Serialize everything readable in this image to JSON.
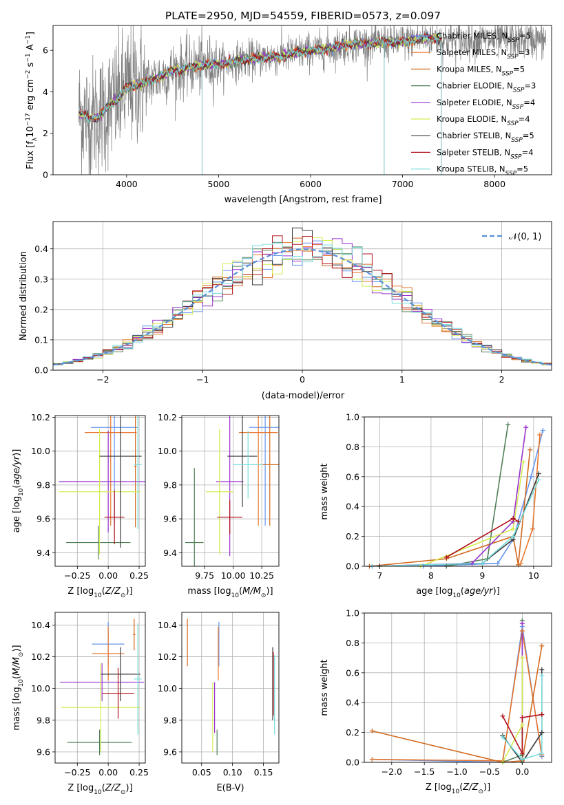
{
  "title": "PLATE=2950, MJD=54559, FIBERID=0573, z=0.097",
  "colors": {
    "Chabrier MILES": "#6495ed",
    "Salpeter MILES": "#e8762d",
    "Kroupa MILES": "#d2691e",
    "Chabrier ELODIE": "#4f7f56",
    "Salpeter ELODIE": "#9932cc",
    "Kroupa ELODIE": "#d4ed50",
    "Chabrier STELIB": "#3a3a3a",
    "Salpeter STELIB": "#b0101a",
    "Kroupa STELIB": "#77dddd"
  },
  "chart_data": [
    {
      "id": "spectrum",
      "type": "line",
      "title": "PLATE=2950, MJD=54559, FIBERID=0573, z=0.097",
      "xlabel": "wavelength [Angstrom, rest frame]",
      "ylabel": "Flux [f_λ10^-17 erg cm^-2 s^-1 A^-1]",
      "xlim": [
        3200,
        8620
      ],
      "ylim": [
        0,
        7.2
      ],
      "xticks": [
        4000,
        5000,
        6000,
        7000,
        8000
      ],
      "yticks": [
        0,
        2,
        4,
        6
      ],
      "grid": false,
      "legend_position": "top-right",
      "continuum": {
        "x": [
          3480,
          3600,
          3700,
          3800,
          3900,
          4000,
          4100,
          4200,
          4300,
          4400,
          4500,
          4600,
          4700,
          4800,
          4900,
          5000,
          5100,
          5200,
          5300,
          5400,
          5500,
          5600,
          5700,
          5800,
          5900,
          6000,
          6100,
          6200,
          6300,
          6400,
          6500,
          6600,
          6700,
          6800,
          6900,
          7000,
          7100,
          7200,
          7300,
          7400,
          7430
        ],
        "y": [
          3.0,
          2.7,
          2.8,
          3.3,
          3.6,
          4.2,
          4.35,
          4.4,
          4.6,
          4.8,
          5.0,
          5.1,
          5.2,
          5.25,
          5.3,
          5.35,
          5.35,
          5.5,
          5.55,
          5.6,
          5.65,
          5.7,
          5.75,
          5.85,
          5.9,
          6.0,
          6.0,
          6.1,
          6.2,
          6.3,
          6.35,
          6.3,
          6.35,
          6.4,
          6.4,
          6.4,
          6.5,
          6.55,
          6.6,
          6.6,
          6.5
        ]
      },
      "legend": [
        "Chabrier MILES, N_SSP=5",
        "Salpeter MILES, N_SSP=3",
        "Kroupa MILES, N_SSP=5",
        "Chabrier ELODIE, N_SSP=3",
        "Salpeter ELODIE, N_SSP=4",
        "Kroupa ELODIE, N_SSP=4",
        "Chabrier STELIB, N_SSP=5",
        "Salpeter STELIB, N_SSP=4",
        "Kroupa STELIB, N_SSP=5"
      ]
    },
    {
      "id": "residuals",
      "type": "line",
      "xlabel": "(data-model)/error",
      "ylabel": "Normed distribution",
      "xlim": [
        -2.5,
        2.5
      ],
      "ylim": [
        0,
        0.49
      ],
      "xticks": [
        -2,
        -1,
        0,
        1,
        2
      ],
      "yticks": [
        0.0,
        0.1,
        0.2,
        0.3,
        0.4
      ],
      "grid": true,
      "legend_position": "top-right",
      "legend": [
        "𝒩(0, 1)"
      ],
      "bin_width": 0.1
    },
    {
      "id": "age_vs_Z",
      "type": "scatter",
      "xlabel": "Z [log10(Z/Z⊙)]",
      "ylabel": "age  [log10(age/yr)]",
      "xlim": [
        -0.43,
        0.3
      ],
      "ylim": [
        9.32,
        10.21
      ],
      "xticks": [
        -0.25,
        0.0,
        0.25
      ],
      "yticks": [
        9.4,
        9.6,
        9.8,
        10.0,
        10.2
      ],
      "grid": true,
      "points": [
        {
          "model": "Chabrier MILES",
          "x": 0.05,
          "xerr": 0.19,
          "y": 10.14,
          "yerr": 0.58
        },
        {
          "model": "Salpeter MILES",
          "x": 0.02,
          "xerr": 0.21,
          "y": 10.11,
          "yerr": 0.55
        },
        {
          "model": "Kroupa MILES",
          "x": 0.22,
          "xerr": 0.01,
          "y": 9.91,
          "yerr": 0.36
        },
        {
          "model": "Chabrier ELODIE",
          "x": -0.08,
          "xerr": 0.26,
          "y": 9.46,
          "yerr": 0.1
        },
        {
          "model": "Salpeter ELODIE",
          "x": 0.0,
          "xerr": 0.4,
          "y": 9.82,
          "yerr": 0.3
        },
        {
          "model": "Kroupa ELODIE",
          "x": -0.07,
          "xerr": 0.33,
          "y": 9.76,
          "yerr": 0.37
        },
        {
          "model": "Chabrier STELIB",
          "x": 0.1,
          "xerr": 0.17,
          "y": 9.97,
          "yerr": 0.54
        },
        {
          "model": "Salpeter STELIB",
          "x": 0.05,
          "xerr": 0.08,
          "y": 9.61,
          "yerr": 0.16
        },
        {
          "model": "Kroupa STELIB",
          "x": 0.24,
          "xerr": 0.03,
          "y": 9.92,
          "yerr": 0.38
        }
      ]
    },
    {
      "id": "age_vs_mass",
      "type": "scatter",
      "xlabel": "mass [log10(M/M⊙)]",
      "ylabel": "",
      "xlim": [
        9.55,
        10.4
      ],
      "ylim": [
        9.32,
        10.21
      ],
      "xticks": [
        9.75,
        10.0,
        10.25
      ],
      "yticks": [
        9.4,
        9.6,
        9.8,
        10.0,
        10.2
      ],
      "grid": true,
      "points": [
        {
          "model": "Chabrier MILES",
          "x": 10.28,
          "xerr": 0.14,
          "y": 10.14,
          "yerr": 0.58
        },
        {
          "model": "Salpeter MILES",
          "x": 10.22,
          "xerr": 0.17,
          "y": 10.11,
          "yerr": 0.55
        },
        {
          "model": "Kroupa MILES",
          "x": 10.32,
          "xerr": 0.12,
          "y": 9.92,
          "yerr": 0.36
        },
        {
          "model": "Chabrier ELODIE",
          "x": 9.66,
          "xerr": 0.08,
          "y": 9.46,
          "yerr": 0.44
        },
        {
          "model": "Salpeter ELODIE",
          "x": 9.97,
          "xerr": 0.12,
          "y": 9.82,
          "yerr": 0.44
        },
        {
          "model": "Kroupa ELODIE",
          "x": 9.88,
          "xerr": 0.12,
          "y": 9.76,
          "yerr": 0.37
        },
        {
          "model": "Chabrier STELIB",
          "x": 10.08,
          "xerr": 0.13,
          "y": 9.97,
          "yerr": 0.3
        },
        {
          "model": "Salpeter STELIB",
          "x": 9.97,
          "xerr": 0.11,
          "y": 9.61,
          "yerr": 0.1
        },
        {
          "model": "Kroupa STELIB",
          "x": 10.13,
          "xerr": 0.13,
          "y": 9.92,
          "yerr": 0.2
        }
      ]
    },
    {
      "id": "weights_vs_age",
      "type": "line",
      "xlabel": "age  [log10(age/yr)]",
      "ylabel": "mass weight",
      "xlim": [
        6.7,
        10.35
      ],
      "ylim": [
        0,
        1.0
      ],
      "xticks": [
        7,
        8,
        9,
        10
      ],
      "yticks": [
        0.0,
        0.2,
        0.4,
        0.6,
        0.8,
        1.0
      ],
      "grid": true,
      "series": [
        {
          "model": "Chabrier MILES",
          "x": [
            6.85,
            7.85,
            9.3,
            9.6,
            9.95,
            10.18
          ],
          "y": [
            0.0,
            0.0,
            0.02,
            0.18,
            0.6,
            0.91
          ]
        },
        {
          "model": "Salpeter MILES",
          "x": [
            9.75,
            9.98,
            10.12
          ],
          "y": [
            0.02,
            0.25,
            0.88
          ]
        },
        {
          "model": "Kroupa MILES",
          "x": [
            6.8,
            8.3,
            9.6,
            9.7,
            9.93
          ],
          "y": [
            0.0,
            0.05,
            0.2,
            0.01,
            0.78
          ]
        },
        {
          "model": "Chabrier ELODIE",
          "x": [
            8.3,
            9.1,
            9.5
          ],
          "y": [
            0.0,
            0.05,
            0.95
          ]
        },
        {
          "model": "Salpeter ELODIE",
          "x": [
            6.85,
            8.8,
            9.6,
            9.85
          ],
          "y": [
            0.0,
            0.02,
            0.3,
            0.93
          ]
        },
        {
          "model": "Kroupa ELODIE",
          "x": [
            7.8,
            9.6,
            9.8
          ],
          "y": [
            0.0,
            0.25,
            0.7
          ]
        },
        {
          "model": "Chabrier STELIB",
          "x": [
            7.0,
            9.0,
            9.6,
            10.1
          ],
          "y": [
            0.0,
            0.02,
            0.18,
            0.62
          ]
        },
        {
          "model": "Salpeter STELIB",
          "x": [
            8.3,
            9.6,
            9.7
          ],
          "y": [
            0.06,
            0.32,
            0.3
          ]
        },
        {
          "model": "Kroupa STELIB",
          "x": [
            6.85,
            9.0,
            9.6,
            10.1
          ],
          "y": [
            0.0,
            0.02,
            0.2,
            0.58
          ]
        }
      ]
    },
    {
      "id": "mass_vs_Z",
      "type": "scatter",
      "xlabel": "Z [log10(Z/Z⊙)]",
      "ylabel": "mass [log10(M/M⊙)]",
      "xlim": [
        -0.43,
        0.3
      ],
      "ylim": [
        9.53,
        10.48
      ],
      "xticks": [
        -0.25,
        0.0,
        0.25
      ],
      "yticks": [
        9.6,
        9.8,
        10.0,
        10.2,
        10.4
      ],
      "grid": true,
      "points": [
        {
          "model": "Chabrier MILES",
          "x": 0.0,
          "xerr": 0.13,
          "y": 10.28,
          "yerr": 0.14
        },
        {
          "model": "Salpeter MILES",
          "x": 0.0,
          "xerr": 0.13,
          "y": 10.22,
          "yerr": 0.17
        },
        {
          "model": "Kroupa MILES",
          "x": 0.21,
          "xerr": 0.01,
          "y": 10.34,
          "yerr": 0.1
        },
        {
          "model": "Chabrier ELODIE",
          "x": -0.07,
          "xerr": 0.26,
          "y": 9.66,
          "yerr": 0.08
        },
        {
          "model": "Salpeter ELODIE",
          "x": -0.05,
          "xerr": 0.34,
          "y": 10.04,
          "yerr": 0.12
        },
        {
          "model": "Kroupa ELODIE",
          "x": -0.06,
          "xerr": 0.32,
          "y": 9.88,
          "yerr": 0.28
        },
        {
          "model": "Chabrier STELIB",
          "x": 0.1,
          "xerr": 0.16,
          "y": 10.09,
          "yerr": 0.17
        },
        {
          "model": "Salpeter STELIB",
          "x": 0.08,
          "xerr": 0.13,
          "y": 9.97,
          "yerr": 0.16
        },
        {
          "model": "Kroupa STELIB",
          "x": 0.24,
          "xerr": 0.03,
          "y": 10.06,
          "yerr": 0.35
        }
      ]
    },
    {
      "id": "mass_vs_ebv",
      "type": "scatter",
      "xlabel": "E(B-V)",
      "ylabel": "",
      "xlim": [
        0.018,
        0.175
      ],
      "ylim": [
        9.53,
        10.48
      ],
      "xticks": [
        0.05,
        0.1,
        0.15
      ],
      "yticks": [
        9.6,
        9.8,
        10.0,
        10.2,
        10.4
      ],
      "grid": true,
      "points": [
        {
          "model": "Chabrier MILES",
          "x": 0.078,
          "y": 10.28,
          "yerr": 0.14
        },
        {
          "model": "Salpeter MILES",
          "x": 0.077,
          "y": 10.22,
          "yerr": 0.17
        },
        {
          "model": "Kroupa MILES",
          "x": 0.027,
          "y": 10.29,
          "yerr": 0.15
        },
        {
          "model": "Chabrier ELODIE",
          "x": 0.075,
          "y": 9.66,
          "yerr": 0.08
        },
        {
          "model": "Salpeter ELODIE",
          "x": 0.071,
          "y": 9.88,
          "yerr": 0.16
        },
        {
          "model": "Kroupa ELODIE",
          "x": 0.068,
          "y": 9.82,
          "yerr": 0.22
        },
        {
          "model": "Chabrier STELIB",
          "x": 0.165,
          "y": 10.03,
          "yerr": 0.23
        },
        {
          "model": "Salpeter STELIB",
          "x": 0.166,
          "y": 10.03,
          "yerr": 0.2
        },
        {
          "model": "Kroupa STELIB",
          "x": 0.168,
          "y": 9.96,
          "yerr": 0.25
        }
      ]
    },
    {
      "id": "weights_vs_Z",
      "type": "line",
      "xlabel": "Z [log10(Z/Z⊙)]",
      "ylabel": "mass weight",
      "xlim": [
        -2.42,
        0.45
      ],
      "ylim": [
        0,
        1.0
      ],
      "xticks": [
        -2.0,
        -1.5,
        -1.0,
        -0.5,
        0.0
      ],
      "yticks": [
        0.0,
        0.2,
        0.4,
        0.6,
        0.8,
        1.0
      ],
      "grid": true,
      "series": [
        {
          "model": "Chabrier MILES",
          "x": [
            -2.3,
            -0.3,
            0.0,
            0.3
          ],
          "y": [
            0.02,
            0.0,
            0.91,
            0.04
          ]
        },
        {
          "model": "Salpeter MILES",
          "x": [
            -2.3,
            -0.3,
            0.0,
            0.3
          ],
          "y": [
            0.02,
            0.01,
            0.88,
            0.05
          ]
        },
        {
          "model": "Kroupa MILES",
          "x": [
            -2.3,
            -0.3,
            0.0,
            0.3
          ],
          "y": [
            0.21,
            0.0,
            0.01,
            0.78
          ]
        },
        {
          "model": "Chabrier ELODIE",
          "x": [
            -0.3,
            0.0,
            0.0
          ],
          "y": [
            0.0,
            0.05,
            0.95
          ]
        },
        {
          "model": "Salpeter ELODIE",
          "x": [
            0.0,
            0.0
          ],
          "y": [
            0.3,
            0.93
          ]
        },
        {
          "model": "Kroupa ELODIE",
          "x": [
            -0.3,
            0.0,
            0.0
          ],
          "y": [
            0.0,
            0.25,
            0.7
          ]
        },
        {
          "model": "Chabrier STELIB",
          "x": [
            -0.3,
            0.0,
            0.3,
            0.3
          ],
          "y": [
            0.18,
            0.0,
            0.2,
            0.62
          ]
        },
        {
          "model": "Salpeter STELIB",
          "x": [
            -0.3,
            0.0,
            0.0,
            0.3
          ],
          "y": [
            0.31,
            0.06,
            0.3,
            0.32
          ]
        },
        {
          "model": "Kroupa STELIB",
          "x": [
            -0.3,
            0.0,
            0.3,
            0.3
          ],
          "y": [
            0.17,
            0.02,
            0.06,
            0.58
          ]
        }
      ]
    }
  ]
}
